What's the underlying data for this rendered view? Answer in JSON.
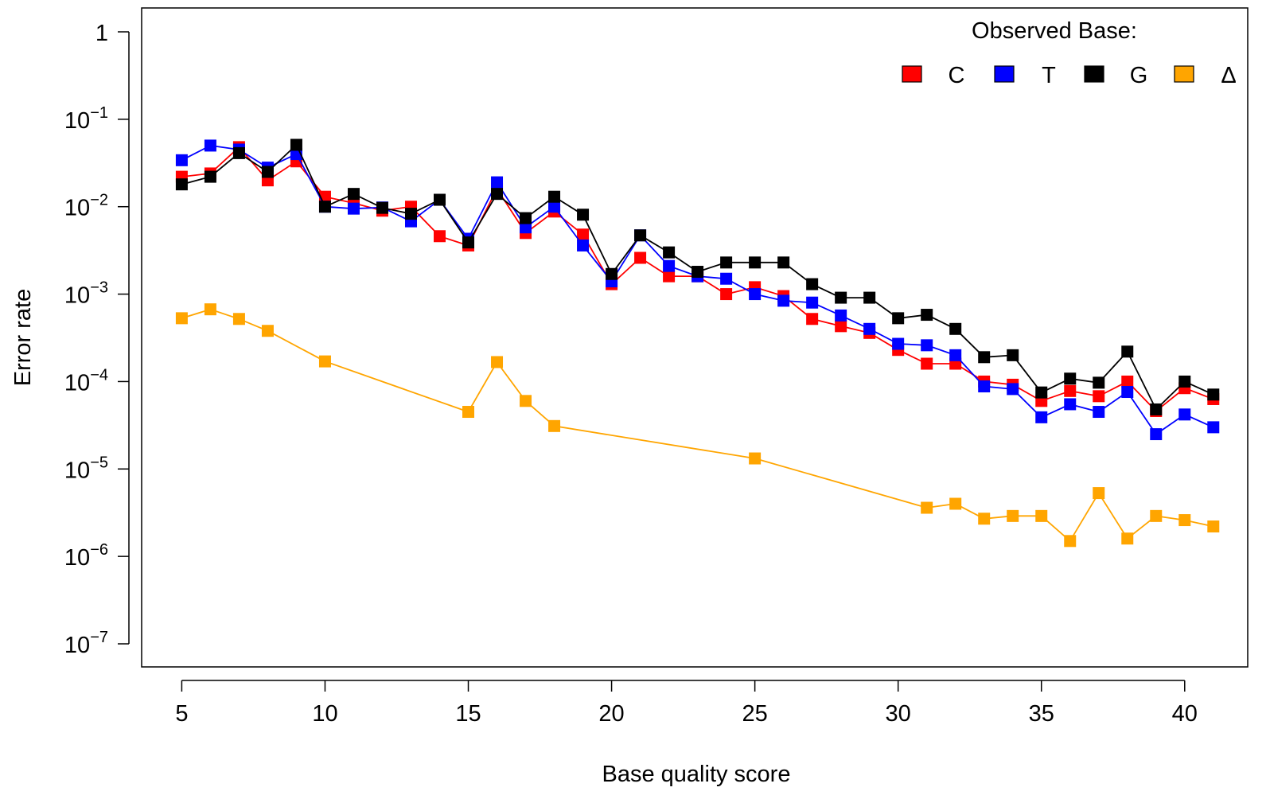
{
  "chart_data": {
    "type": "line",
    "title": "",
    "xlabel": "Base quality score",
    "ylabel": "Error rate",
    "xlim": [
      3.6,
      42.2
    ],
    "ylim": [
      1e-07,
      1
    ],
    "y_scale": "log10",
    "x_ticks": [
      5,
      10,
      15,
      20,
      25,
      30,
      35,
      40
    ],
    "x_tick_labels": [
      "5",
      "10",
      "15",
      "20",
      "25",
      "30",
      "35",
      "40"
    ],
    "y_ticks": [
      1,
      0.1,
      0.01,
      0.001,
      0.0001,
      1e-05,
      1e-06,
      1e-07
    ],
    "y_tick_labels": [
      {
        "base": "1",
        "exp": ""
      },
      {
        "base": "10",
        "exp": "−1"
      },
      {
        "base": "10",
        "exp": "−2"
      },
      {
        "base": "10",
        "exp": "−3"
      },
      {
        "base": "10",
        "exp": "−4"
      },
      {
        "base": "10",
        "exp": "−5"
      },
      {
        "base": "10",
        "exp": "−6"
      },
      {
        "base": "10",
        "exp": "−7"
      }
    ],
    "legend": {
      "title": "Observed Base:",
      "placement": "top-right",
      "entries": [
        {
          "label": "C",
          "color": "#ff0000"
        },
        {
          "label": "T",
          "color": "#0000ff"
        },
        {
          "label": "G",
          "color": "#000000"
        },
        {
          "label": "Δ",
          "color": "#ffa500"
        }
      ]
    },
    "series": [
      {
        "name": "C",
        "color": "#ff0000",
        "x": [
          5,
          6,
          7,
          8,
          9,
          10,
          11,
          12,
          13,
          14,
          15,
          16,
          17,
          18,
          19,
          20,
          21,
          22,
          23,
          24,
          25,
          26,
          27,
          28,
          29,
          30,
          31,
          32,
          33,
          34,
          35,
          36,
          37,
          38,
          39,
          40,
          41
        ],
        "y": [
          0.022,
          0.024,
          0.048,
          0.02,
          0.033,
          0.013,
          0.011,
          0.009,
          0.01,
          0.0046,
          0.0036,
          0.016,
          0.005,
          0.0088,
          0.0048,
          0.0013,
          0.0026,
          0.0016,
          0.0016,
          0.001,
          0.0012,
          0.00095,
          0.00052,
          0.00043,
          0.00036,
          0.00023,
          0.00016,
          0.00016,
          0.0001,
          9.2e-05,
          6e-05,
          7.8e-05,
          6.8e-05,
          0.0001,
          4.6e-05,
          8.4e-05,
          6.3e-05
        ]
      },
      {
        "name": "T",
        "color": "#0000ff",
        "x": [
          5,
          6,
          7,
          8,
          9,
          10,
          11,
          12,
          13,
          14,
          15,
          16,
          17,
          18,
          19,
          20,
          21,
          22,
          23,
          24,
          25,
          26,
          27,
          28,
          29,
          30,
          31,
          32,
          33,
          34,
          35,
          36,
          37,
          38,
          39,
          40,
          41
        ],
        "y": [
          0.034,
          0.05,
          0.045,
          0.028,
          0.04,
          0.01,
          0.0095,
          0.0098,
          0.0068,
          0.012,
          0.0043,
          0.019,
          0.0058,
          0.01,
          0.0036,
          0.0014,
          0.0047,
          0.0021,
          0.0016,
          0.0015,
          0.001,
          0.00084,
          0.0008,
          0.00057,
          0.0004,
          0.00027,
          0.00026,
          0.0002,
          8.8e-05,
          8.2e-05,
          3.9e-05,
          5.5e-05,
          4.5e-05,
          7.6e-05,
          2.5e-05,
          4.2e-05,
          3e-05
        ]
      },
      {
        "name": "G",
        "color": "#000000",
        "x": [
          5,
          6,
          7,
          8,
          9,
          10,
          11,
          12,
          13,
          14,
          15,
          16,
          17,
          18,
          19,
          20,
          21,
          22,
          23,
          24,
          25,
          26,
          27,
          28,
          29,
          30,
          31,
          32,
          33,
          34,
          35,
          36,
          37,
          38,
          39,
          40,
          41
        ],
        "y": [
          0.018,
          0.022,
          0.041,
          0.025,
          0.051,
          0.01,
          0.014,
          0.0097,
          0.0083,
          0.012,
          0.0039,
          0.014,
          0.0074,
          0.013,
          0.0081,
          0.0017,
          0.0047,
          0.003,
          0.0018,
          0.0023,
          0.0023,
          0.0023,
          0.0013,
          0.00091,
          0.00091,
          0.00053,
          0.00058,
          0.0004,
          0.00019,
          0.0002,
          7.5e-05,
          0.000108,
          9.7e-05,
          0.00022,
          4.8e-05,
          0.0001,
          7.1e-05
        ]
      },
      {
        "name": "Δ",
        "color": "#ffa500",
        "x": [
          5,
          6,
          7,
          8,
          10,
          15,
          16,
          17,
          18,
          25,
          31,
          32,
          33,
          34,
          35,
          36,
          37,
          38,
          39,
          40,
          41
        ],
        "y": [
          0.00053,
          0.00067,
          0.00052,
          0.00038,
          0.00017,
          4.5e-05,
          0.000167,
          6e-05,
          3.1e-05,
          1.32e-05,
          3.6e-06,
          4e-06,
          2.7e-06,
          2.9e-06,
          2.9e-06,
          1.5e-06,
          5.3e-06,
          1.6e-06,
          2.9e-06,
          2.6e-06,
          2.2e-06
        ]
      }
    ]
  }
}
